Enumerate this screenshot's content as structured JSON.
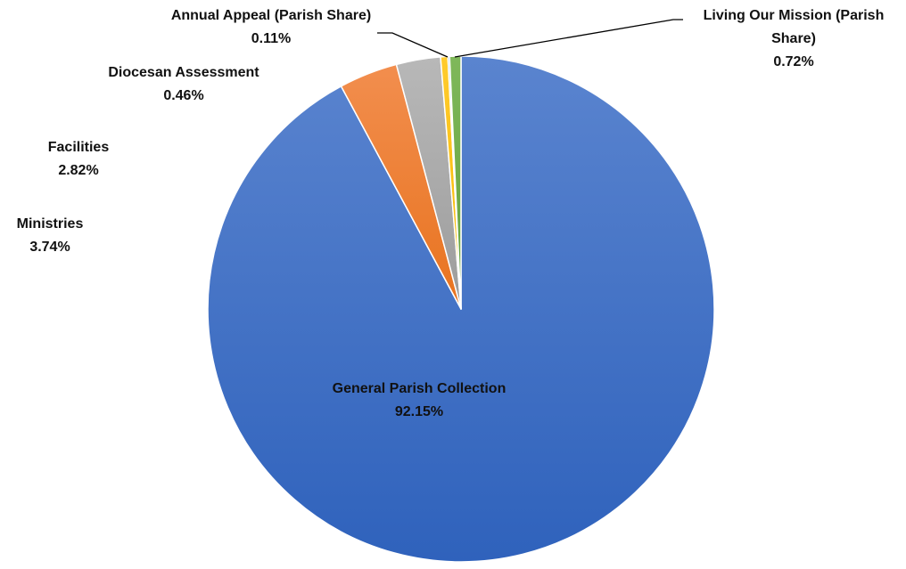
{
  "chart_data": {
    "type": "pie",
    "start_angle_deg": 0,
    "direction": "clockwise",
    "legend": "none",
    "slices": [
      {
        "name": "General Parish Collection",
        "value": 92.15,
        "label_lines": [
          "General Parish Collection",
          "92.15%"
        ],
        "color": "#4472C4",
        "label_placement": "inside"
      },
      {
        "name": "Ministries",
        "value": 3.74,
        "label_lines": [
          "Ministries",
          "3.74%"
        ],
        "color": "#ED7D31",
        "label_placement": "outside-left"
      },
      {
        "name": "Facilities",
        "value": 2.82,
        "label_lines": [
          "Facilities",
          "2.82%"
        ],
        "color": "#A5A5A5",
        "label_placement": "outside-left"
      },
      {
        "name": "Diocesan Assessment",
        "value": 0.46,
        "label_lines": [
          "Diocesan Assessment",
          "0.46%"
        ],
        "color": "#FFC000",
        "label_placement": "outside-left"
      },
      {
        "name": "Annual Appeal (Parish Share)",
        "value": 0.11,
        "label_lines": [
          "Annual Appeal (Parish Share)",
          "0.11%"
        ],
        "color": "#5B9BD5",
        "label_placement": "outside-top-leader"
      },
      {
        "name": "Living Our Mission (Parish Share)",
        "value": 0.72,
        "label_lines": [
          "Living Our Mission (Parish",
          "Share)",
          "0.72%"
        ],
        "color": "#70AD47",
        "label_placement": "outside-right-leader"
      }
    ]
  }
}
